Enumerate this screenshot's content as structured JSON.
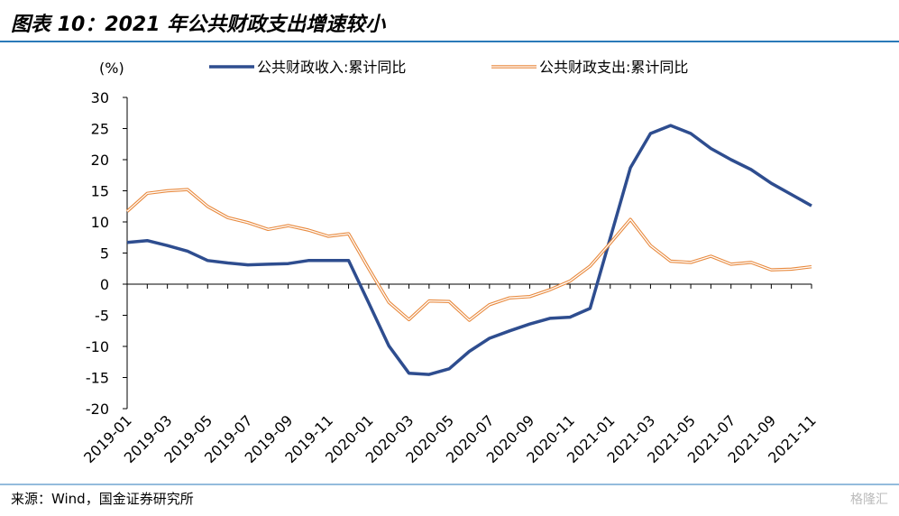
{
  "chart_data": {
    "type": "line",
    "title": "图表 10：2021 年公共财政支出增速较小",
    "y_unit": "(%)",
    "source": "来源：Wind，国金证券研究所",
    "watermark": "格隆汇",
    "categories": [
      "2019-01",
      null,
      "2019-03",
      null,
      "2019-05",
      null,
      "2019-07",
      null,
      "2019-09",
      null,
      "2019-11",
      null,
      "2020-01",
      null,
      "2020-03",
      null,
      "2020-05",
      null,
      "2020-07",
      null,
      "2020-09",
      null,
      "2020-11",
      null,
      "2021-01",
      null,
      "2021-03",
      null,
      "2021-05",
      null,
      "2021-07",
      null,
      "2021-09",
      null,
      "2021-11"
    ],
    "series": [
      {
        "name": "公共财政收入:累计同比",
        "color": "#2e4d8f",
        "style": "solid",
        "values": [
          6.7,
          7.0,
          6.2,
          5.3,
          3.8,
          3.4,
          3.1,
          3.2,
          3.3,
          3.8,
          3.8,
          3.8,
          -3.0,
          -9.9,
          -14.3,
          -14.5,
          -13.6,
          -10.8,
          -8.7,
          -7.5,
          -6.4,
          -5.5,
          -5.3,
          -3.9,
          7.4,
          18.7,
          24.2,
          25.5,
          24.2,
          21.8,
          20.0,
          18.4,
          16.2,
          14.4,
          12.6
        ]
      },
      {
        "name": "公共财政支出:累计同比",
        "color": "#e8893d",
        "style": "double",
        "values": [
          11.7,
          14.6,
          15.0,
          15.2,
          12.5,
          10.7,
          9.9,
          8.8,
          9.4,
          8.7,
          7.7,
          8.1,
          2.5,
          -2.9,
          -5.7,
          -2.7,
          -2.8,
          -5.8,
          -3.3,
          -2.2,
          -2.0,
          -0.9,
          0.5,
          2.9,
          6.6,
          10.4,
          6.2,
          3.7,
          3.5,
          4.5,
          3.2,
          3.5,
          2.3,
          2.4,
          2.8
        ]
      }
    ],
    "ylim": [
      -20,
      30
    ],
    "yticks": [
      -20,
      -15,
      -10,
      -5,
      0,
      5,
      10,
      15,
      20,
      25,
      30
    ]
  }
}
